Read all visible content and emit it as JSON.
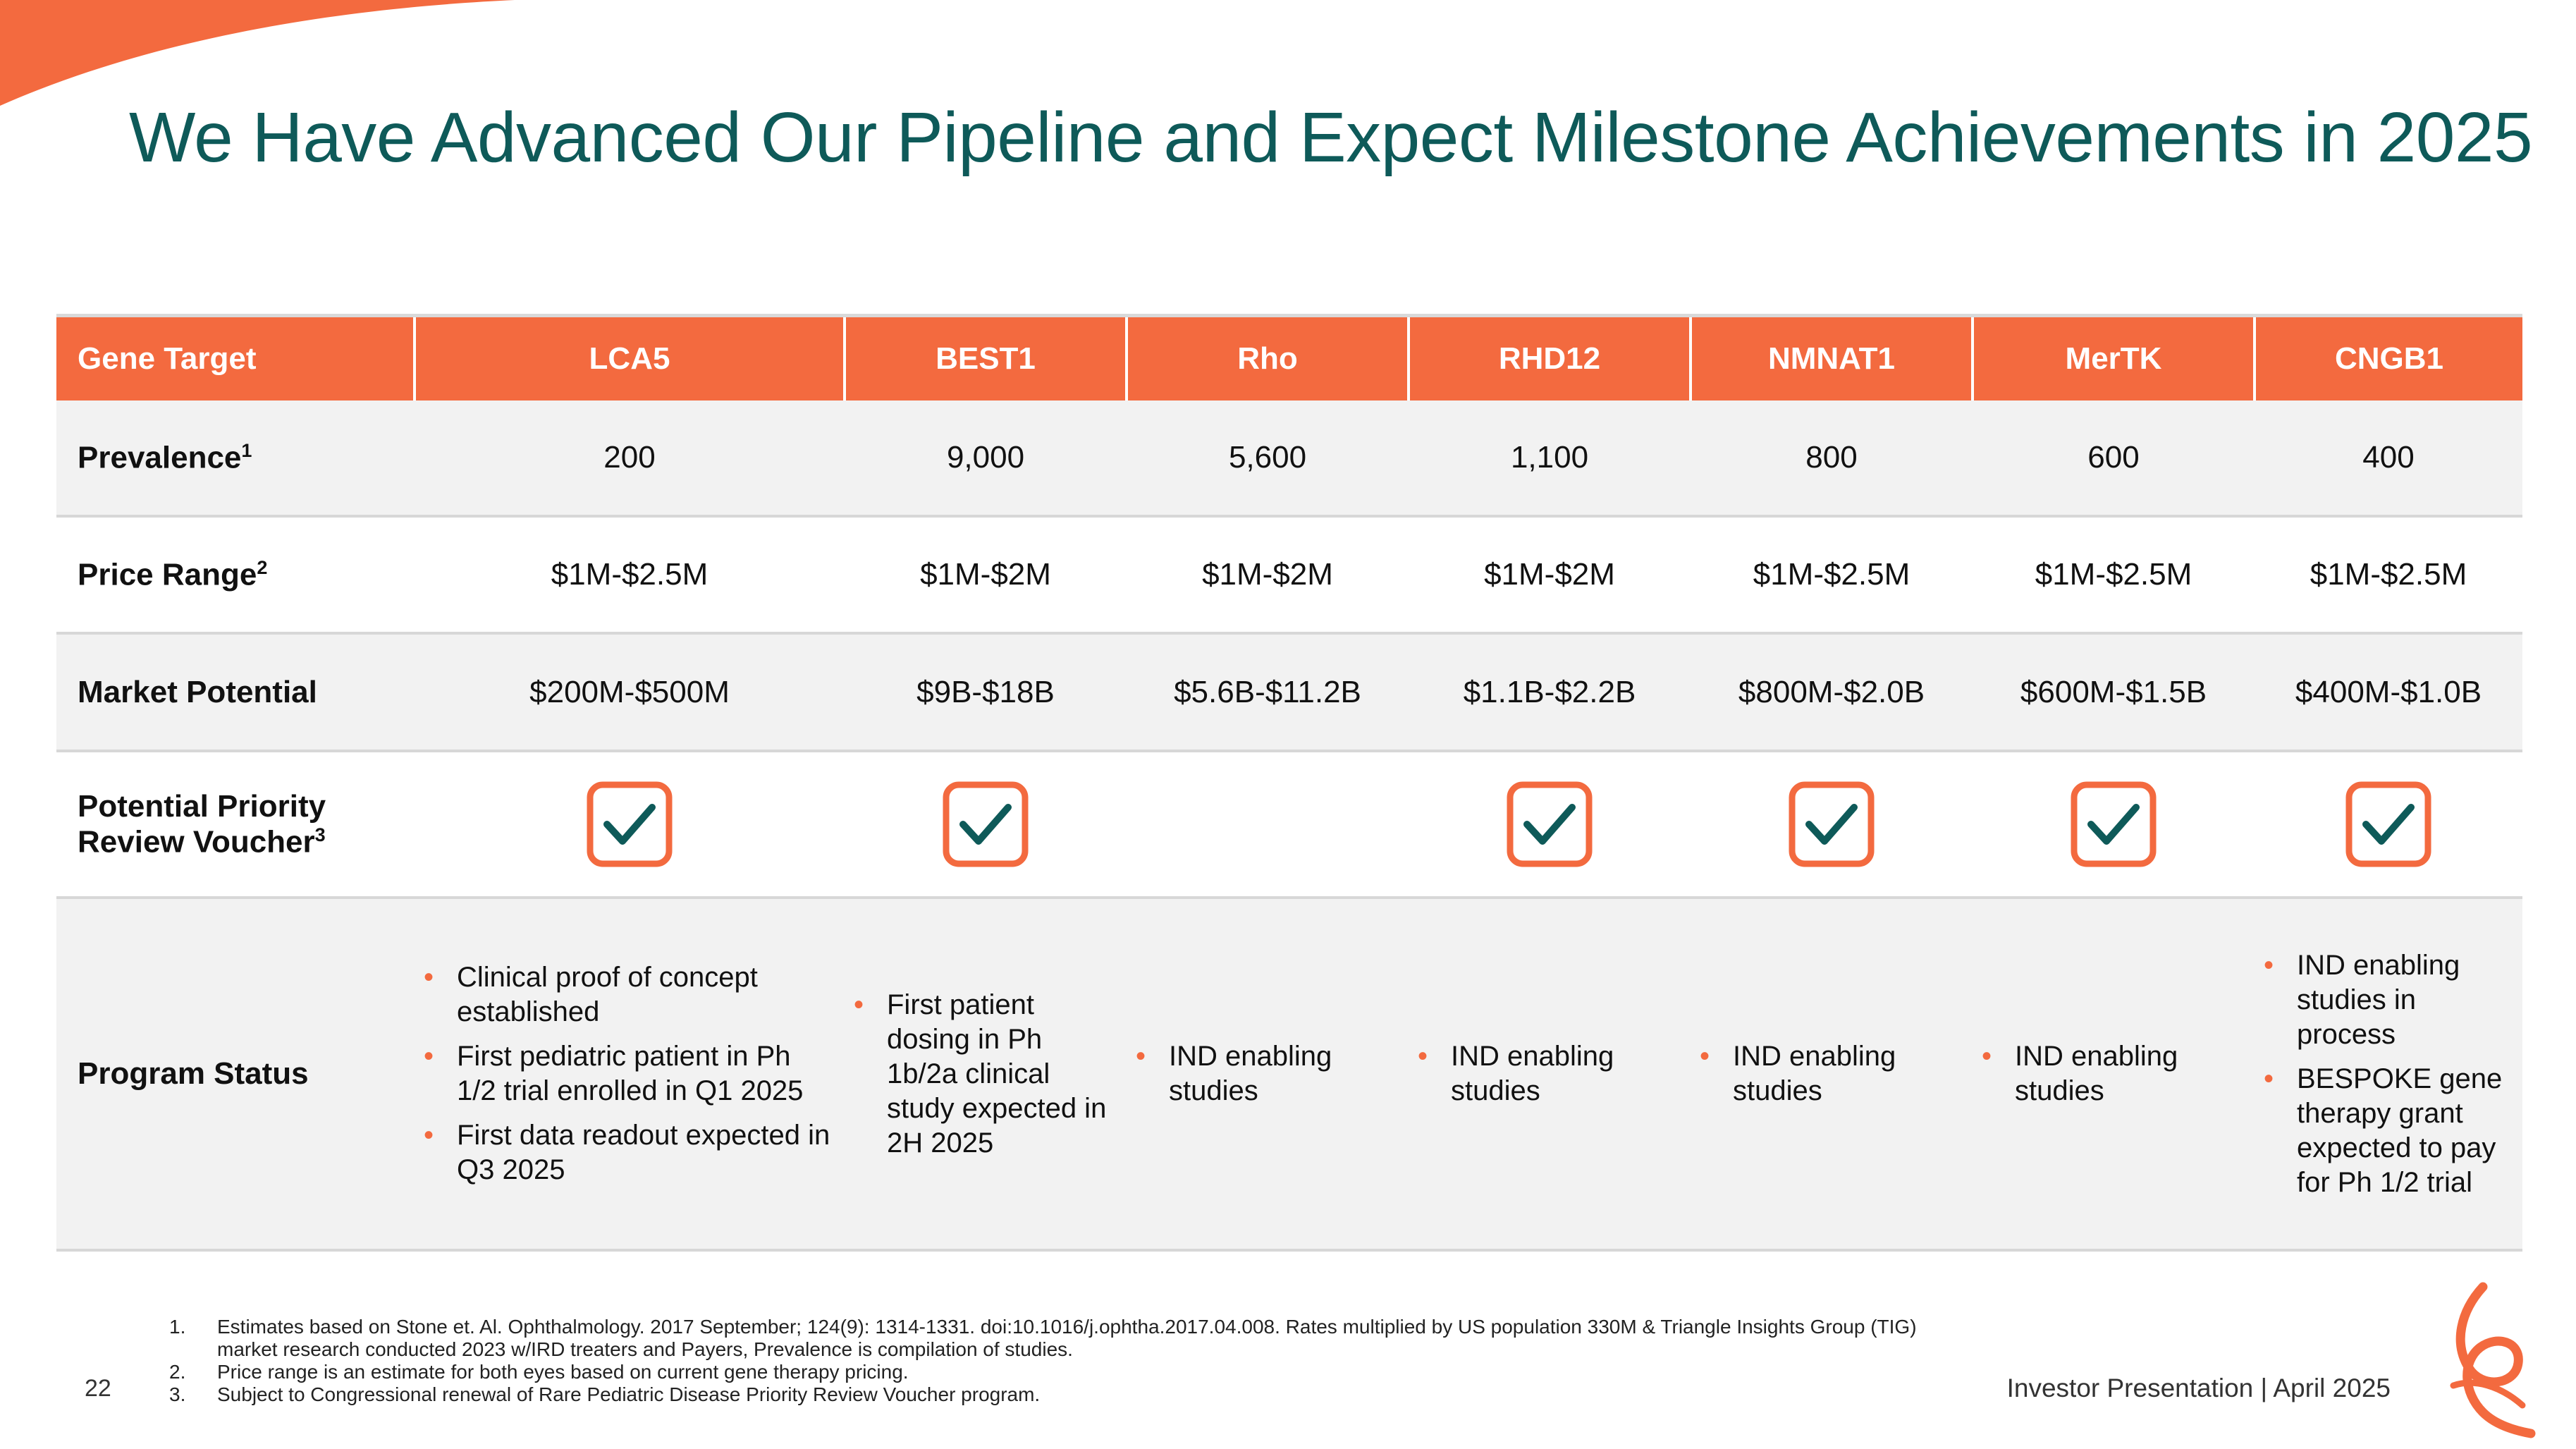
{
  "title": "We Have Advanced Our Pipeline and Expect Milestone Achievements in 2025",
  "table": {
    "header_label": "Gene Target",
    "targets": [
      "LCA5",
      "BEST1",
      "Rho",
      "RHD12",
      "NMNAT1",
      "MerTK",
      "CNGB1"
    ],
    "prevalence": {
      "label": "Prevalence",
      "sup": "1",
      "values": [
        "200",
        "9,000",
        "5,600",
        "1,100",
        "800",
        "600",
        "400"
      ]
    },
    "price_range": {
      "label": "Price Range",
      "sup": "2",
      "values": [
        "$1M-$2.5M",
        "$1M-$2M",
        "$1M-$2M",
        "$1M-$2M",
        "$1M-$2.5M",
        "$1M-$2.5M",
        "$1M-$2.5M"
      ]
    },
    "market_potential": {
      "label": "Market Potential",
      "values": [
        "$200M-$500M",
        "$9B-$18B",
        "$5.6B-$11.2B",
        "$1.1B-$2.2B",
        "$800M-$2.0B",
        "$600M-$1.5B",
        "$400M-$1.0B"
      ]
    },
    "priority_voucher": {
      "label_line1": "Potential Priority",
      "label_line2": "Review Voucher",
      "sup": "3",
      "checked": [
        true,
        true,
        false,
        true,
        true,
        true,
        true
      ]
    },
    "program_status": {
      "label": "Program Status",
      "items": [
        [
          "Clinical proof of concept established",
          "First pediatric patient in Ph 1/2 trial enrolled in Q1 2025",
          "First data readout expected in Q3 2025"
        ],
        [
          "First patient dosing in Ph 1b/2a clinical study expected in 2H 2025"
        ],
        [
          "IND enabling studies"
        ],
        [
          "IND enabling studies"
        ],
        [
          "IND enabling studies"
        ],
        [
          "IND enabling studies"
        ],
        [
          "IND enabling studies in process",
          "BESPOKE gene therapy grant expected to pay for Ph 1/2 trial"
        ]
      ]
    }
  },
  "footnotes": [
    {
      "num": "1.",
      "text": "Estimates based on Stone et. Al. Ophthalmology. 2017 September; 124(9): 1314-1331. doi:10.1016/j.ophtha.2017.04.008. Rates multiplied by US population 330M & Triangle Insights Group (TIG) market research conducted 2023 w/IRD treaters and Payers, Prevalence is compilation of studies."
    },
    {
      "num": "2.",
      "text": "Price range is an estimate for both eyes based on current gene therapy pricing."
    },
    {
      "num": "3.",
      "text": "Subject to Congressional renewal of Rare Pediatric Disease Priority Review Voucher program."
    }
  ],
  "page_number": "22",
  "footer": "Investor Presentation | April 2025",
  "colors": {
    "accent": "#f36a3f",
    "title": "#0e5a59",
    "check": "#0e5a59"
  }
}
